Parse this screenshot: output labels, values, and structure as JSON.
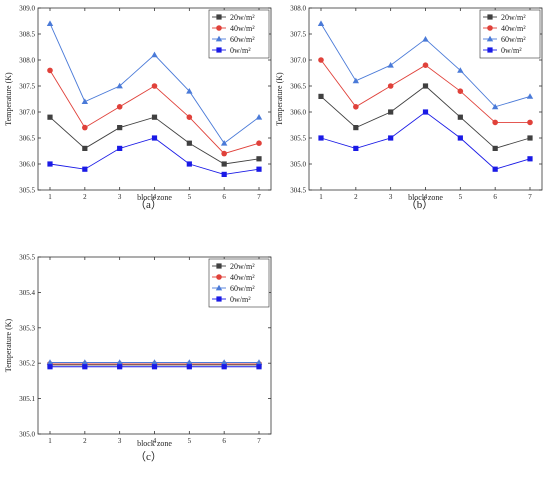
{
  "chart_data": [
    {
      "type": "line",
      "panel_label": "（a）",
      "xlabel": "block zone",
      "ylabel": "Temperature (K)",
      "x": [
        1,
        2,
        3,
        4,
        5,
        6,
        7
      ],
      "xticks": [
        "1",
        "2",
        "3",
        "4",
        "5",
        "6",
        "7"
      ],
      "ylim": [
        305.5,
        309.0
      ],
      "yticks": [
        "305.5",
        "306.0",
        "306.5",
        "307.0",
        "307.5",
        "308.0",
        "308.5",
        "309.0"
      ],
      "legend_position": "top-right",
      "grid": false,
      "series": [
        {
          "name": "20w/m²",
          "color": "#404040",
          "marker": "square",
          "values": [
            306.9,
            306.3,
            306.7,
            306.9,
            306.4,
            306.0,
            306.1
          ]
        },
        {
          "name": "40w/m²",
          "color": "#e0413a",
          "marker": "circle",
          "values": [
            307.8,
            306.7,
            307.1,
            307.5,
            306.9,
            306.2,
            306.4
          ]
        },
        {
          "name": "60w/m²",
          "color": "#4a7ad8",
          "marker": "triangle",
          "values": [
            308.7,
            307.2,
            307.5,
            308.1,
            307.4,
            306.4,
            306.9
          ]
        },
        {
          "name": "0w/m²",
          "color": "#1a1ae6",
          "marker": "square",
          "values": [
            306.0,
            305.9,
            306.3,
            306.5,
            306.0,
            305.8,
            305.9
          ]
        }
      ]
    },
    {
      "type": "line",
      "panel_label": "（b）",
      "xlabel": "block zone",
      "ylabel": "Temperature (K)",
      "x": [
        1,
        2,
        3,
        4,
        5,
        6,
        7
      ],
      "xticks": [
        "1",
        "2",
        "3",
        "4",
        "5",
        "6",
        "7"
      ],
      "ylim": [
        304.5,
        308.0
      ],
      "yticks": [
        "304.5",
        "305.0",
        "305.5",
        "306.0",
        "306.5",
        "307.0",
        "307.5",
        "308.0"
      ],
      "legend_position": "top-right",
      "grid": false,
      "series": [
        {
          "name": "20w/m²",
          "color": "#404040",
          "marker": "square",
          "values": [
            306.3,
            305.7,
            306.0,
            306.5,
            305.9,
            305.3,
            305.5
          ]
        },
        {
          "name": "40w/m²",
          "color": "#e0413a",
          "marker": "circle",
          "values": [
            307.0,
            306.1,
            306.5,
            306.9,
            306.4,
            305.8,
            305.8
          ]
        },
        {
          "name": "60w/m²",
          "color": "#4a7ad8",
          "marker": "triangle",
          "values": [
            307.7,
            306.6,
            306.9,
            307.4,
            306.8,
            306.1,
            306.3
          ]
        },
        {
          "name": "0w/m²",
          "color": "#1a1ae6",
          "marker": "square",
          "values": [
            305.5,
            305.3,
            305.5,
            306.0,
            305.5,
            304.9,
            305.1
          ]
        }
      ]
    },
    {
      "type": "line",
      "panel_label": "（c）",
      "xlabel": "block zone",
      "ylabel": "Temperature (K)",
      "x": [
        1,
        2,
        3,
        4,
        5,
        6,
        7
      ],
      "xticks": [
        "1",
        "2",
        "3",
        "4",
        "5",
        "6",
        "7"
      ],
      "ylim": [
        305.0,
        305.5
      ],
      "yticks": [
        "305.0",
        "305.1",
        "305.2",
        "305.3",
        "305.4",
        "305.5"
      ],
      "legend_position": "top-right",
      "grid": false,
      "series": [
        {
          "name": "20w/m²",
          "color": "#404040",
          "marker": "square",
          "values": [
            305.195,
            305.195,
            305.195,
            305.195,
            305.195,
            305.195,
            305.195
          ]
        },
        {
          "name": "40w/m²",
          "color": "#e0413a",
          "marker": "circle",
          "values": [
            305.198,
            305.198,
            305.198,
            305.198,
            305.198,
            305.198,
            305.198
          ]
        },
        {
          "name": "60w/m²",
          "color": "#4a7ad8",
          "marker": "triangle",
          "values": [
            305.202,
            305.202,
            305.202,
            305.202,
            305.202,
            305.202,
            305.202
          ]
        },
        {
          "name": "0w/m²",
          "color": "#1a1ae6",
          "marker": "square",
          "values": [
            305.19,
            305.19,
            305.19,
            305.19,
            305.19,
            305.19,
            305.19
          ]
        }
      ]
    }
  ]
}
